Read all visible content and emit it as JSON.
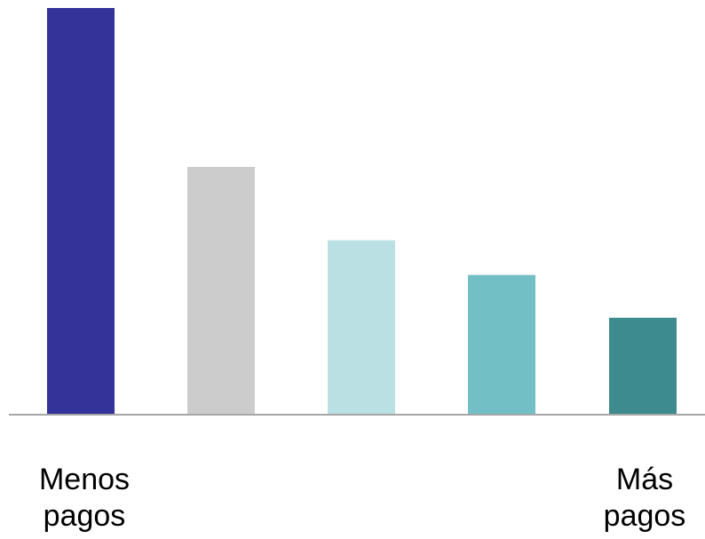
{
  "chart_data": {
    "type": "bar",
    "categories": [
      "Menos pagos",
      "",
      "",
      "",
      "Más pagos"
    ],
    "category_label_lines": [
      [
        "Menos",
        "pagos"
      ],
      [],
      [],
      [],
      [
        "Más",
        "pagos"
      ]
    ],
    "values": [
      100,
      61,
      43,
      34.5,
      24
    ],
    "colors": [
      "#333399",
      "#cccccc",
      "#bbe0e3",
      "#72bfc5",
      "#3d8a8f"
    ],
    "ylim": [
      0,
      100
    ],
    "grid": false,
    "legend": false,
    "axis_color": "#a6a6a6",
    "title": "",
    "xlabel": "",
    "ylabel": ""
  }
}
